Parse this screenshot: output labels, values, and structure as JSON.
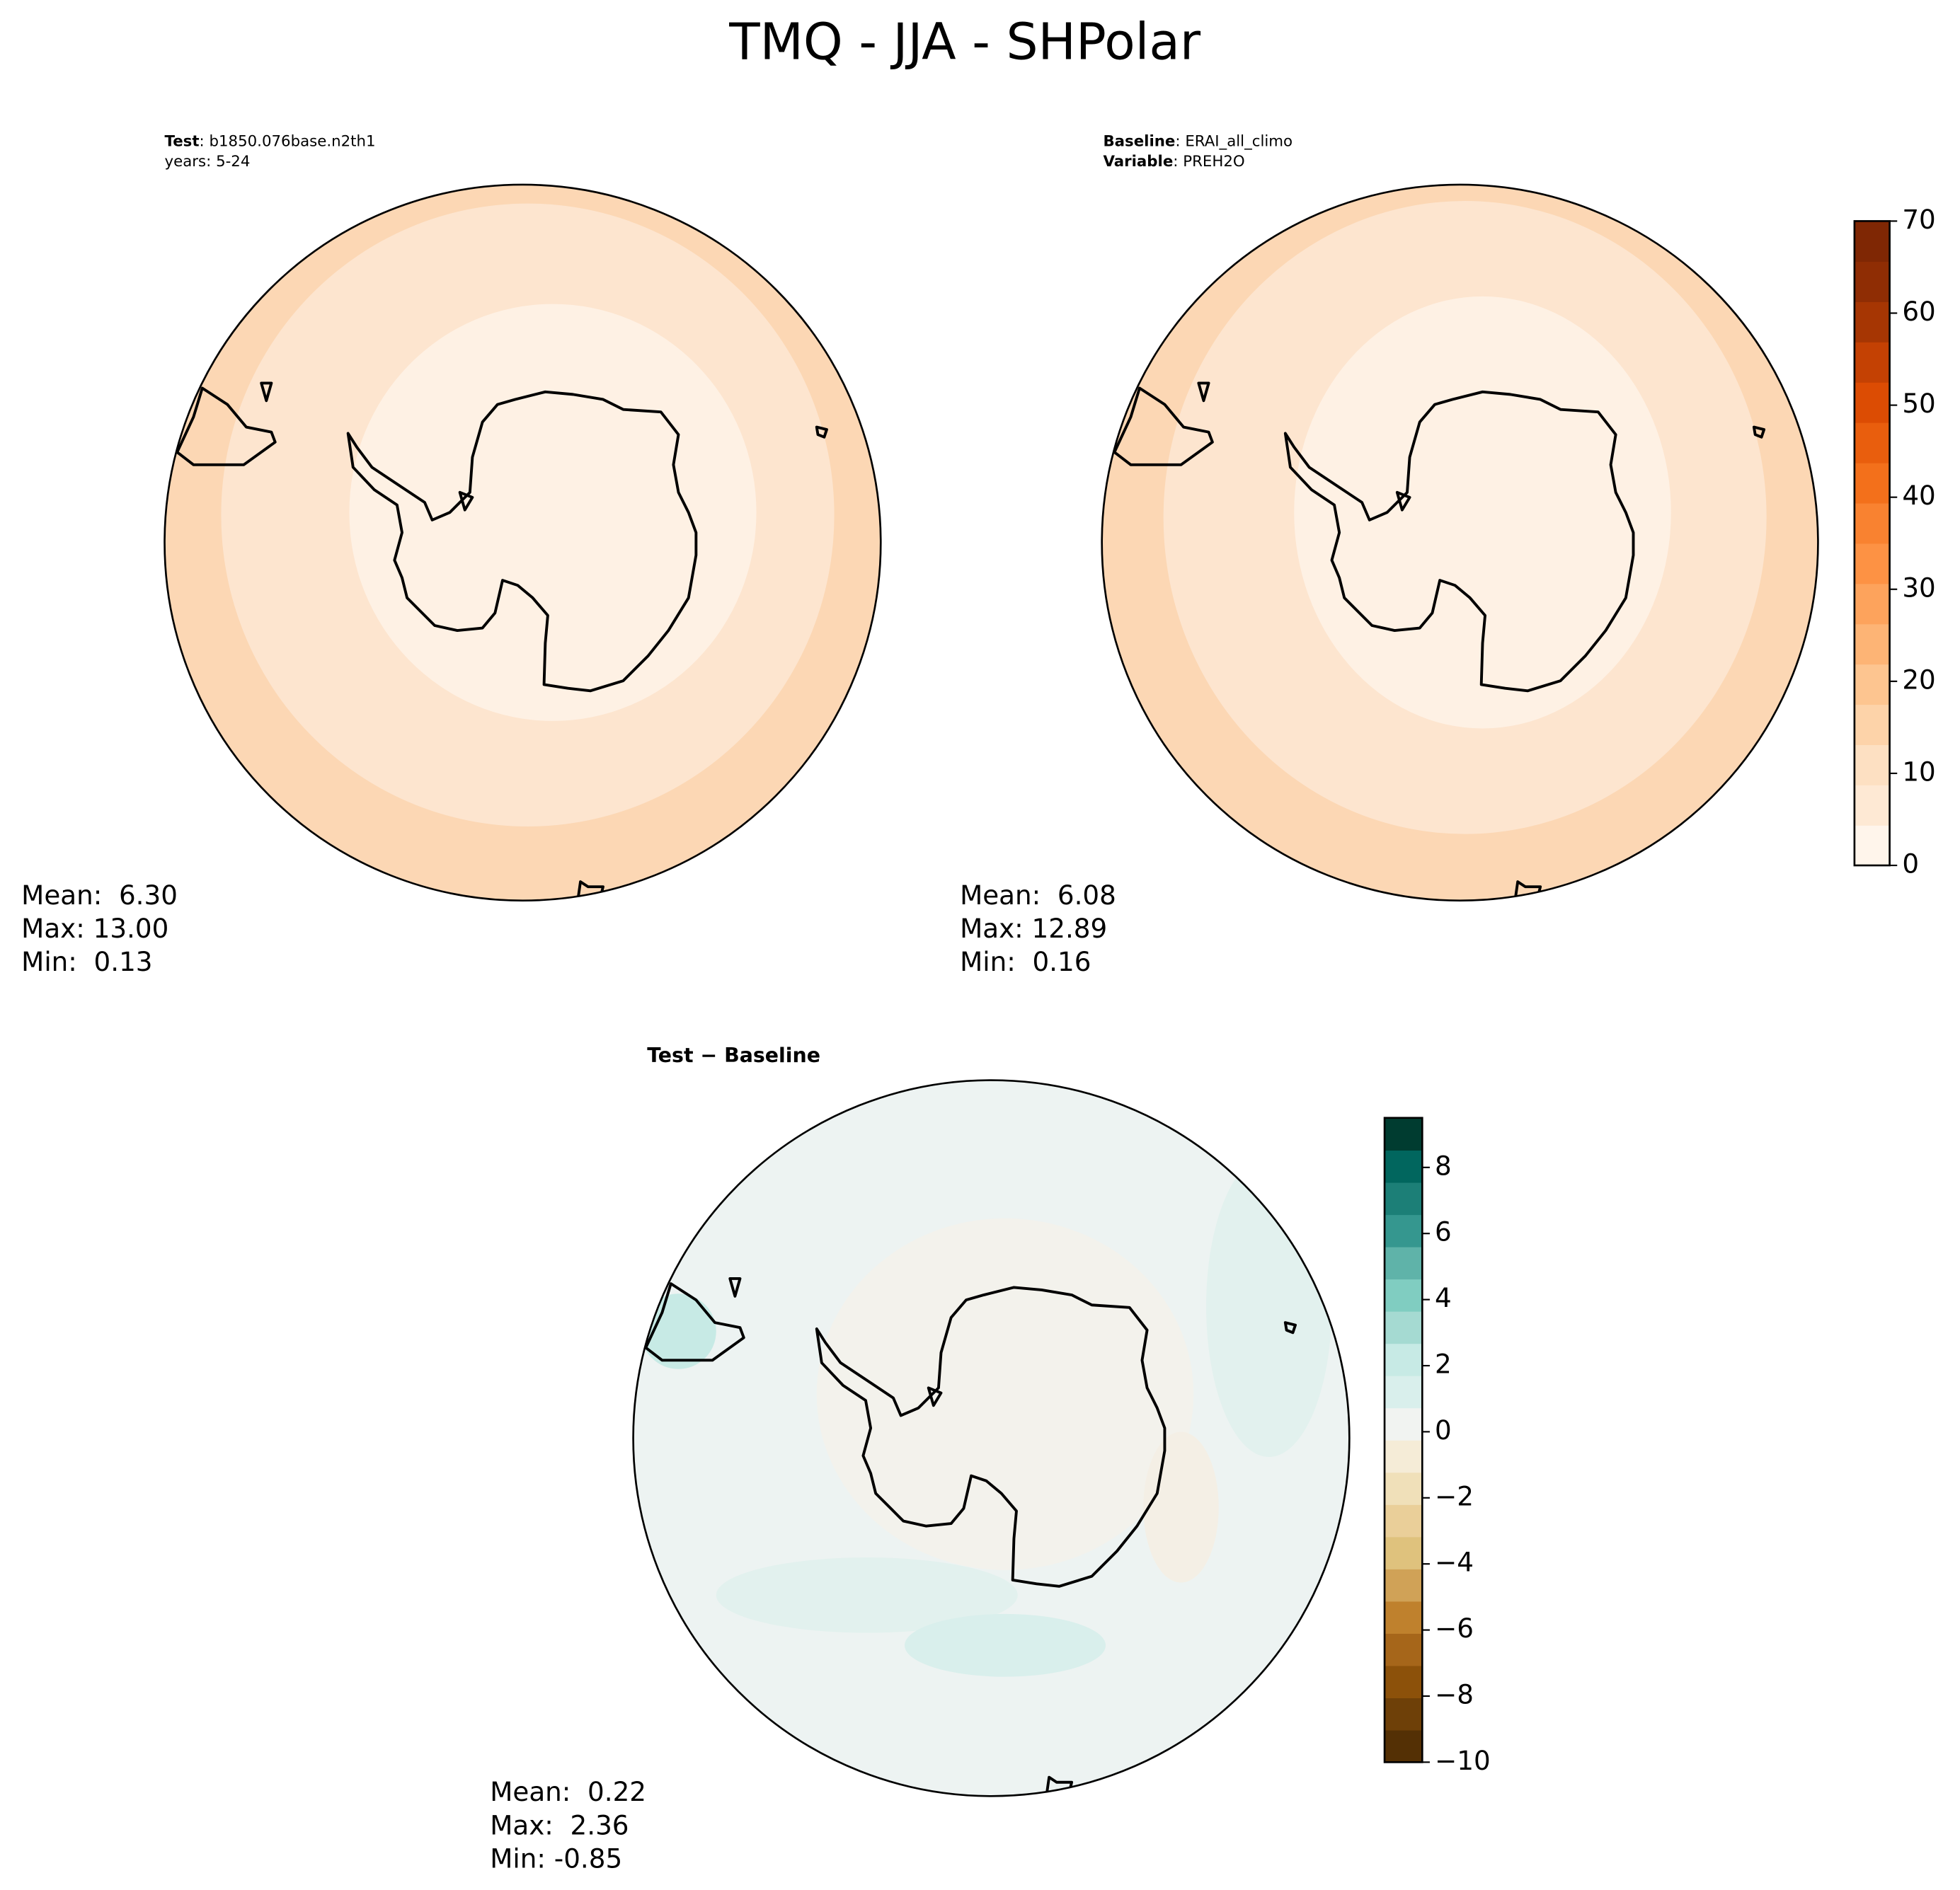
{
  "title": "TMQ - JJA - SHPolar",
  "panels": [
    {
      "header": [
        {
          "key": "Test",
          "value": ": b1850.076base.n2th1"
        },
        {
          "key": "",
          "value": "years: 5-24"
        }
      ],
      "stats": [
        "Mean:  6.30",
        "Max: 13.00",
        "Min:  0.13"
      ]
    },
    {
      "header": [
        {
          "key": "Baseline",
          "value": ": ERAI_all_climo"
        },
        {
          "key": "Variable",
          "value": ": PREH2O"
        }
      ],
      "stats": [
        "Mean:  6.08",
        "Max: 12.89",
        "Min:  0.16"
      ]
    },
    {
      "title": "Test − Baseline",
      "stats": [
        "Mean:  0.22",
        "Max:  2.36",
        "Min: -0.85"
      ]
    }
  ],
  "colorbars": [
    {
      "lim": [
        0,
        70
      ],
      "ticks": [
        0,
        10,
        20,
        30,
        40,
        50,
        60,
        70
      ],
      "colors": [
        "#fff5eb",
        "#fee9d4",
        "#fde0c2",
        "#fdd3a9",
        "#fdc590",
        "#fdb475",
        "#fda35c",
        "#fd9244",
        "#f98230",
        "#f3701b",
        "#e95e0d",
        "#dc4c03",
        "#c44103",
        "#a63603",
        "#8f2d04",
        "#7f2704"
      ]
    },
    {
      "lim": [
        -10,
        9.5
      ],
      "ticks": [
        {
          "value": -10,
          "label": "−10"
        },
        {
          "value": -8,
          "label": "−8"
        },
        {
          "value": -6,
          "label": "−6"
        },
        {
          "value": -4,
          "label": "−4"
        },
        {
          "value": -2,
          "label": "−2"
        },
        0,
        2,
        4,
        6,
        8
      ],
      "colors": [
        "#543005",
        "#6e4008",
        "#8c510a",
        "#a6661a",
        "#bf812d",
        "#d0a257",
        "#dfc27d",
        "#eacf99",
        "#f0e0b9",
        "#f5ecd7",
        "#f1f3f1",
        "#d9efec",
        "#c7eae5",
        "#a5dad2",
        "#80cdc1",
        "#5fb3a9",
        "#35978f",
        "#1c7f77",
        "#01665e",
        "#003c30"
      ]
    }
  ]
}
